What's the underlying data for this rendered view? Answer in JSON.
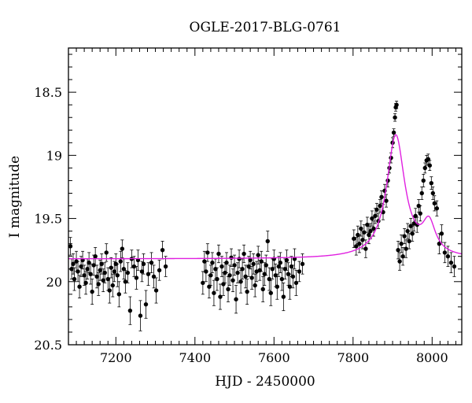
{
  "chart_data": {
    "type": "scatter",
    "title": "OGLE-2017-BLG-0761",
    "xlabel": "HJD - 2450000",
    "ylabel": "I magnitude",
    "xlim": [
      7080,
      8075
    ],
    "ylim": [
      20.5,
      18.15
    ],
    "y_inverted": true,
    "x_major_ticks": [
      7200,
      7400,
      7600,
      7800,
      8000
    ],
    "x_minor_step": 20,
    "y_major_ticks": [
      18.5,
      19,
      19.5,
      20,
      20.5
    ],
    "y_tick_labels": [
      "18.5",
      "19",
      "19.5",
      "20",
      "20.5"
    ],
    "y_minor_step": 0.1,
    "grid": false,
    "legend": "none",
    "colors": {
      "points": "#000000",
      "model": "#e020e0"
    },
    "series": [
      {
        "kind": "photometry",
        "points": [
          [
            7085,
            19.72,
            0.07
          ],
          [
            7088,
            19.9,
            0.08
          ],
          [
            7092,
            19.86,
            0.08
          ],
          [
            7095,
            19.98,
            0.09
          ],
          [
            7100,
            19.84,
            0.08
          ],
          [
            7104,
            19.92,
            0.08
          ],
          [
            7108,
            20.04,
            0.09
          ],
          [
            7112,
            19.88,
            0.08
          ],
          [
            7116,
            19.83,
            0.07
          ],
          [
            7120,
            19.95,
            0.08
          ],
          [
            7124,
            20.01,
            0.09
          ],
          [
            7128,
            19.9,
            0.08
          ],
          [
            7132,
            19.85,
            0.08
          ],
          [
            7136,
            19.94,
            0.08
          ],
          [
            7140,
            20.08,
            0.1
          ],
          [
            7144,
            19.87,
            0.08
          ],
          [
            7148,
            19.8,
            0.07
          ],
          [
            7152,
            19.96,
            0.09
          ],
          [
            7156,
            20.02,
            0.09
          ],
          [
            7160,
            19.91,
            0.08
          ],
          [
            7164,
            19.86,
            0.08
          ],
          [
            7168,
            19.99,
            0.09
          ],
          [
            7172,
            19.93,
            0.08
          ],
          [
            7176,
            19.77,
            0.07
          ],
          [
            7180,
            19.98,
            0.09
          ],
          [
            7184,
            20.07,
            0.1
          ],
          [
            7188,
            19.89,
            0.08
          ],
          [
            7192,
            20.03,
            0.09
          ],
          [
            7196,
            19.92,
            0.08
          ],
          [
            7200,
            19.86,
            0.08
          ],
          [
            7204,
            19.95,
            0.09
          ],
          [
            7208,
            20.1,
            0.1
          ],
          [
            7212,
            19.84,
            0.08
          ],
          [
            7216,
            19.74,
            0.07
          ],
          [
            7220,
            19.9,
            0.08
          ],
          [
            7224,
            20.0,
            0.09
          ],
          [
            7230,
            19.93,
            0.08
          ],
          [
            7236,
            20.23,
            0.11
          ],
          [
            7240,
            19.82,
            0.07
          ],
          [
            7246,
            19.88,
            0.08
          ],
          [
            7252,
            19.97,
            0.09
          ],
          [
            7256,
            19.83,
            0.08
          ],
          [
            7262,
            20.27,
            0.12
          ],
          [
            7266,
            19.92,
            0.08
          ],
          [
            7270,
            19.86,
            0.08
          ],
          [
            7276,
            20.18,
            0.11
          ],
          [
            7282,
            19.94,
            0.09
          ],
          [
            7290,
            19.85,
            0.08
          ],
          [
            7296,
            19.96,
            0.09
          ],
          [
            7302,
            20.07,
            0.1
          ],
          [
            7310,
            19.91,
            0.08
          ],
          [
            7318,
            19.75,
            0.07
          ],
          [
            7326,
            19.88,
            0.08
          ],
          [
            7420,
            20.01,
            0.09
          ],
          [
            7424,
            19.84,
            0.08
          ],
          [
            7428,
            19.92,
            0.08
          ],
          [
            7432,
            19.77,
            0.07
          ],
          [
            7436,
            20.04,
            0.09
          ],
          [
            7440,
            19.95,
            0.08
          ],
          [
            7444,
            19.85,
            0.08
          ],
          [
            7448,
            20.09,
            0.1
          ],
          [
            7452,
            19.9,
            0.08
          ],
          [
            7456,
            19.98,
            0.09
          ],
          [
            7460,
            19.78,
            0.07
          ],
          [
            7464,
            20.12,
            0.1
          ],
          [
            7468,
            19.88,
            0.08
          ],
          [
            7472,
            20.02,
            0.09
          ],
          [
            7476,
            19.93,
            0.08
          ],
          [
            7480,
            19.85,
            0.08
          ],
          [
            7484,
            20.06,
            0.1
          ],
          [
            7488,
            19.95,
            0.08
          ],
          [
            7492,
            19.81,
            0.07
          ],
          [
            7496,
            19.99,
            0.09
          ],
          [
            7500,
            19.87,
            0.08
          ],
          [
            7504,
            20.14,
            0.11
          ],
          [
            7508,
            19.93,
            0.08
          ],
          [
            7512,
            19.82,
            0.07
          ],
          [
            7516,
            20.0,
            0.09
          ],
          [
            7520,
            19.9,
            0.08
          ],
          [
            7524,
            19.78,
            0.07
          ],
          [
            7528,
            19.96,
            0.09
          ],
          [
            7532,
            20.08,
            0.1
          ],
          [
            7536,
            19.88,
            0.08
          ],
          [
            7540,
            19.83,
            0.07
          ],
          [
            7544,
            19.97,
            0.09
          ],
          [
            7548,
            19.86,
            0.08
          ],
          [
            7552,
            20.03,
            0.09
          ],
          [
            7556,
            19.92,
            0.08
          ],
          [
            7560,
            19.79,
            0.07
          ],
          [
            7564,
            19.91,
            0.08
          ],
          [
            7568,
            19.84,
            0.08
          ],
          [
            7572,
            20.06,
            0.1
          ],
          [
            7576,
            19.94,
            0.09
          ],
          [
            7580,
            19.87,
            0.08
          ],
          [
            7584,
            19.68,
            0.08
          ],
          [
            7588,
            19.98,
            0.09
          ],
          [
            7592,
            20.09,
            0.1
          ],
          [
            7596,
            19.9,
            0.08
          ],
          [
            7600,
            19.82,
            0.07
          ],
          [
            7604,
            19.95,
            0.09
          ],
          [
            7608,
            20.04,
            0.1
          ],
          [
            7612,
            19.88,
            0.08
          ],
          [
            7616,
            19.85,
            0.08
          ],
          [
            7620,
            19.98,
            0.09
          ],
          [
            7624,
            20.12,
            0.11
          ],
          [
            7628,
            19.9,
            0.08
          ],
          [
            7632,
            19.83,
            0.08
          ],
          [
            7636,
            19.94,
            0.09
          ],
          [
            7640,
            20.04,
            0.1
          ],
          [
            7644,
            19.88,
            0.08
          ],
          [
            7648,
            19.96,
            0.09
          ],
          [
            7652,
            19.82,
            0.08
          ],
          [
            7656,
            20.01,
            0.1
          ],
          [
            7664,
            19.92,
            0.08
          ],
          [
            7672,
            19.86,
            0.08
          ],
          [
            7802,
            19.66,
            0.07
          ],
          [
            7808,
            19.72,
            0.07
          ],
          [
            7812,
            19.63,
            0.07
          ],
          [
            7816,
            19.7,
            0.07
          ],
          [
            7820,
            19.58,
            0.06
          ],
          [
            7824,
            19.67,
            0.07
          ],
          [
            7828,
            19.61,
            0.06
          ],
          [
            7832,
            19.74,
            0.07
          ],
          [
            7836,
            19.55,
            0.06
          ],
          [
            7840,
            19.63,
            0.07
          ],
          [
            7844,
            19.6,
            0.06
          ],
          [
            7848,
            19.5,
            0.06
          ],
          [
            7852,
            19.58,
            0.06
          ],
          [
            7856,
            19.48,
            0.06
          ],
          [
            7860,
            19.43,
            0.05
          ],
          [
            7864,
            19.52,
            0.06
          ],
          [
            7868,
            19.4,
            0.05
          ],
          [
            7872,
            19.33,
            0.05
          ],
          [
            7876,
            19.45,
            0.06
          ],
          [
            7880,
            19.28,
            0.05
          ],
          [
            7884,
            19.36,
            0.05
          ],
          [
            7888,
            19.2,
            0.05
          ],
          [
            7892,
            19.1,
            0.04
          ],
          [
            7896,
            19.02,
            0.04
          ],
          [
            7900,
            18.9,
            0.04
          ],
          [
            7903,
            18.82,
            0.03
          ],
          [
            7906,
            18.7,
            0.03
          ],
          [
            7908,
            18.62,
            0.03
          ],
          [
            7910,
            18.6,
            0.03
          ],
          [
            7914,
            19.75,
            0.07
          ],
          [
            7918,
            19.84,
            0.07
          ],
          [
            7922,
            19.7,
            0.07
          ],
          [
            7926,
            19.8,
            0.07
          ],
          [
            7930,
            19.64,
            0.06
          ],
          [
            7934,
            19.74,
            0.07
          ],
          [
            7938,
            19.6,
            0.06
          ],
          [
            7942,
            19.68,
            0.06
          ],
          [
            7946,
            19.56,
            0.06
          ],
          [
            7950,
            19.62,
            0.06
          ],
          [
            7954,
            19.54,
            0.06
          ],
          [
            7958,
            19.48,
            0.06
          ],
          [
            7962,
            19.55,
            0.06
          ],
          [
            7966,
            19.4,
            0.05
          ],
          [
            7970,
            19.46,
            0.06
          ],
          [
            7974,
            19.3,
            0.05
          ],
          [
            7978,
            19.2,
            0.05
          ],
          [
            7982,
            19.1,
            0.04
          ],
          [
            7986,
            19.04,
            0.04
          ],
          [
            7990,
            19.03,
            0.04
          ],
          [
            7994,
            19.08,
            0.04
          ],
          [
            7998,
            19.22,
            0.05
          ],
          [
            8002,
            19.3,
            0.05
          ],
          [
            8006,
            19.38,
            0.06
          ],
          [
            8012,
            19.42,
            0.06
          ],
          [
            8018,
            19.7,
            0.08
          ],
          [
            8024,
            19.62,
            0.07
          ],
          [
            8032,
            19.77,
            0.08
          ],
          [
            8040,
            19.8,
            0.08
          ],
          [
            8048,
            19.85,
            0.08
          ],
          [
            8056,
            19.88,
            0.08
          ]
        ]
      },
      {
        "kind": "model",
        "base": 19.82,
        "peaks": [
          {
            "t0": 7908,
            "amp": 0.97,
            "width": 28
          },
          {
            "t0": 7992,
            "amp": 0.24,
            "width": 20
          }
        ]
      }
    ]
  }
}
